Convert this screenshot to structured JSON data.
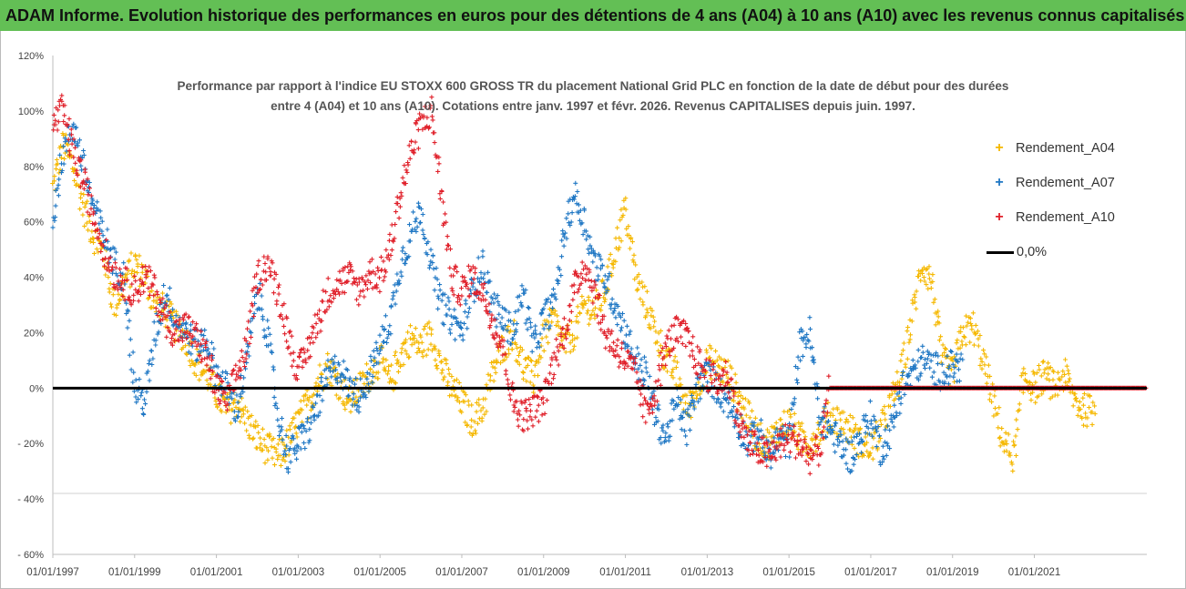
{
  "banner": {
    "title": "ADAM Informe. Evolution historique des performances en euros pour des détentions de 4 ans (A04) à 10 ans (A10) avec les revenus connus capitalisés"
  },
  "chart_data": {
    "type": "scatter",
    "title_line1": "Performance par rapport à l'indice EU STOXX 600 GROSS TR  du placement National Grid PLC en fonction de la date de début pour des durées",
    "title_line2": "entre 4 (A04) et 10 ans (A10).  Cotations entre janv. 1997 et févr. 2026. Revenus CAPITALISES depuis juin. 1997.",
    "xlabel": "",
    "ylabel": "",
    "xlim": [
      1997.0,
      2023.75
    ],
    "ylim": [
      -60,
      120
    ],
    "x_tick_labels": [
      "01/01/1997",
      "01/01/1999",
      "01/01/2001",
      "01/01/2003",
      "01/01/2005",
      "01/01/2007",
      "01/01/2009",
      "01/01/2011",
      "01/01/2013",
      "01/01/2015",
      "01/01/2017",
      "01/01/2019",
      "01/01/2021"
    ],
    "x_tick_values": [
      1997,
      1999,
      2001,
      2003,
      2005,
      2007,
      2009,
      2011,
      2013,
      2015,
      2017,
      2019,
      2021
    ],
    "y_tick_labels": [
      "120%",
      "100%",
      "80%",
      "60%",
      "40%",
      "20%",
      "0%",
      "- 20%",
      "- 40%",
      "- 60%"
    ],
    "y_tick_values": [
      120,
      100,
      80,
      60,
      40,
      20,
      0,
      -20,
      -40,
      -60
    ],
    "legend_position": "top-right",
    "series": [
      {
        "name": "Rendement_A04",
        "color": "#f5b800",
        "x": [
          1997.0,
          1997.25,
          1997.5,
          1997.75,
          1998.0,
          1998.25,
          1998.5,
          1998.75,
          1999.0,
          1999.25,
          1999.5,
          1999.75,
          2000.0,
          2000.25,
          2000.5,
          2000.75,
          2001.0,
          2001.25,
          2001.5,
          2001.75,
          2002.0,
          2002.25,
          2002.5,
          2002.75,
          2003.0,
          2003.25,
          2003.5,
          2003.75,
          2004.0,
          2004.25,
          2004.5,
          2004.75,
          2005.0,
          2005.25,
          2005.5,
          2005.75,
          2006.0,
          2006.25,
          2006.5,
          2006.75,
          2007.0,
          2007.25,
          2007.5,
          2007.75,
          2008.0,
          2008.25,
          2008.5,
          2008.75,
          2009.0,
          2009.25,
          2009.5,
          2009.75,
          2010.0,
          2010.25,
          2010.5,
          2010.75,
          2011.0,
          2011.25,
          2011.5,
          2011.75,
          2012.0,
          2012.25,
          2012.5,
          2012.75,
          2013.0,
          2013.25,
          2013.5,
          2013.75,
          2014.0,
          2014.25,
          2014.5,
          2014.75,
          2015.0,
          2015.25,
          2015.5,
          2015.75,
          2016.0,
          2016.25,
          2016.5,
          2016.75,
          2017.0,
          2017.25,
          2017.5,
          2017.75,
          2018.0,
          2018.25,
          2018.5,
          2018.75,
          2019.0,
          2019.25,
          2019.5,
          2019.75,
          2020.0,
          2020.25,
          2020.5,
          2020.75,
          2021.0,
          2021.25,
          2021.5,
          2021.75,
          2022.0,
          2022.25
        ],
        "values": [
          72,
          88,
          80,
          65,
          55,
          48,
          30,
          38,
          45,
          40,
          30,
          28,
          22,
          18,
          10,
          5,
          -2,
          -8,
          -5,
          -12,
          -18,
          -22,
          -25,
          -20,
          -12,
          -5,
          3,
          8,
          2,
          -5,
          0,
          5,
          10,
          2,
          12,
          18,
          15,
          20,
          8,
          0,
          -5,
          -12,
          -8,
          5,
          15,
          20,
          8,
          3,
          18,
          25,
          15,
          20,
          30,
          28,
          35,
          50,
          65,
          40,
          30,
          20,
          10,
          5,
          -8,
          0,
          10,
          8,
          5,
          -3,
          -10,
          -18,
          -20,
          -15,
          -12,
          -18,
          -20,
          -15,
          -10,
          -12,
          -15,
          -20,
          -22,
          -15,
          -5,
          5,
          25,
          45,
          38,
          10,
          5,
          20,
          22,
          10,
          -5,
          -20,
          -25,
          5,
          0,
          5,
          0,
          5,
          -5,
          -8
        ]
      },
      {
        "name": "Rendement_A07",
        "color": "#1f77c4",
        "x": [
          1997.0,
          1997.25,
          1997.5,
          1997.75,
          1998.0,
          1998.25,
          1998.5,
          1998.75,
          1999.0,
          1999.25,
          1999.5,
          1999.75,
          2000.0,
          2000.25,
          2000.5,
          2000.75,
          2001.0,
          2001.25,
          2001.5,
          2001.75,
          2002.0,
          2002.25,
          2002.5,
          2002.75,
          2003.0,
          2003.25,
          2003.5,
          2003.75,
          2004.0,
          2004.25,
          2004.5,
          2004.75,
          2005.0,
          2005.25,
          2005.5,
          2005.75,
          2006.0,
          2006.25,
          2006.5,
          2006.75,
          2007.0,
          2007.25,
          2007.5,
          2007.75,
          2008.0,
          2008.25,
          2008.5,
          2008.75,
          2009.0,
          2009.25,
          2009.5,
          2009.75,
          2010.0,
          2010.25,
          2010.5,
          2010.75,
          2011.0,
          2011.25,
          2011.5,
          2011.75,
          2012.0,
          2012.25,
          2012.5,
          2012.75,
          2013.0,
          2013.25,
          2013.5,
          2013.75,
          2014.0,
          2014.25,
          2014.5,
          2014.75,
          2015.0,
          2015.25,
          2015.5,
          2015.75,
          2016.0,
          2016.25,
          2016.5,
          2016.75,
          2017.0,
          2017.25,
          2017.5,
          2017.75,
          2018.0,
          2018.25,
          2018.5,
          2018.75,
          2019.0
        ],
        "values": [
          62,
          85,
          95,
          80,
          65,
          55,
          45,
          40,
          0,
          -5,
          20,
          35,
          25,
          20,
          15,
          18,
          5,
          0,
          -8,
          10,
          35,
          20,
          -10,
          -25,
          -20,
          -15,
          -5,
          5,
          8,
          0,
          -3,
          5,
          15,
          25,
          45,
          55,
          65,
          45,
          30,
          25,
          20,
          35,
          45,
          30,
          25,
          20,
          35,
          15,
          25,
          30,
          55,
          70,
          60,
          45,
          40,
          30,
          20,
          10,
          5,
          -10,
          -18,
          -5,
          -15,
          0,
          5,
          0,
          -5,
          -12,
          -20,
          -15,
          -25,
          -18,
          -20,
          15,
          20,
          -10,
          -15,
          -20,
          -25,
          -18,
          -10,
          -22,
          -15,
          0,
          5,
          10,
          8,
          5,
          8
        ]
      },
      {
        "name": "Rendement_A10",
        "color": "#e0202a",
        "x": [
          1997.0,
          1997.25,
          1997.5,
          1997.75,
          1998.0,
          1998.25,
          1998.5,
          1998.75,
          1999.0,
          1999.25,
          1999.5,
          1999.75,
          2000.0,
          2000.25,
          2000.5,
          2000.75,
          2001.0,
          2001.25,
          2001.5,
          2001.75,
          2002.0,
          2002.25,
          2002.5,
          2002.75,
          2003.0,
          2003.25,
          2003.5,
          2003.75,
          2004.0,
          2004.25,
          2004.5,
          2004.75,
          2005.0,
          2005.25,
          2005.5,
          2005.75,
          2006.0,
          2006.25,
          2006.5,
          2006.75,
          2007.0,
          2007.25,
          2007.5,
          2007.75,
          2008.0,
          2008.25,
          2008.5,
          2008.75,
          2009.0,
          2009.25,
          2009.5,
          2009.75,
          2010.0,
          2010.25,
          2010.5,
          2010.75,
          2011.0,
          2011.25,
          2011.5,
          2011.75,
          2012.0,
          2012.25,
          2012.5,
          2012.75,
          2013.0,
          2013.25,
          2013.5,
          2013.75,
          2014.0,
          2014.25,
          2014.5,
          2014.75,
          2015.0,
          2015.25,
          2015.5,
          2015.75,
          2016.0,
          2016.25,
          2016.5,
          2016.75,
          2017.0,
          2017.25,
          2017.5,
          2017.75,
          2018.0,
          2018.25,
          2018.5,
          2018.75,
          2019.0,
          2019.25,
          2019.5,
          2019.75,
          2020.0,
          2020.25,
          2020.5,
          2020.75,
          2021.0,
          2021.25,
          2021.5,
          2021.75,
          2022.0,
          2022.25,
          2022.5,
          2022.75,
          2023.0,
          2023.25,
          2023.5
        ],
        "values": [
          95,
          100,
          85,
          75,
          62,
          50,
          42,
          38,
          35,
          40,
          35,
          25,
          20,
          22,
          18,
          12,
          0,
          -5,
          5,
          15,
          40,
          45,
          35,
          20,
          5,
          15,
          25,
          35,
          38,
          40,
          35,
          42,
          40,
          50,
          70,
          85,
          95,
          100,
          70,
          40,
          35,
          40,
          35,
          25,
          15,
          -5,
          -10,
          -8,
          -5,
          10,
          20,
          35,
          45,
          35,
          20,
          15,
          10,
          5,
          -10,
          0,
          15,
          20,
          18,
          10,
          5,
          2,
          5,
          -10,
          -20,
          -22,
          -25,
          -20,
          -18,
          -20,
          -25,
          -22,
          0,
          0,
          0,
          0,
          0,
          0,
          0,
          0,
          0,
          0,
          0,
          0,
          0,
          0,
          0,
          0,
          0,
          0,
          0,
          0,
          0,
          0,
          0,
          0,
          0,
          0,
          0,
          0,
          0,
          0,
          0
        ]
      }
    ],
    "reference_line": {
      "name": "0,0%",
      "value": 0,
      "color": "#000000"
    }
  }
}
